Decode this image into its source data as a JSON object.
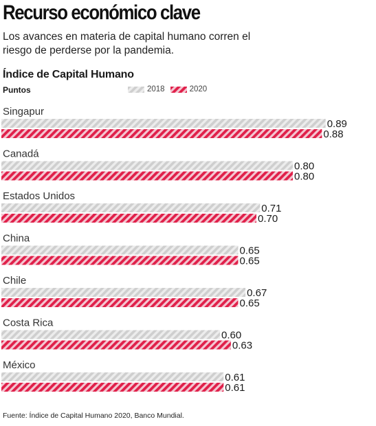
{
  "title": "Recurso económico clave",
  "subtitle": "Los avances en materia de capital humano corren el riesgo de perderse por la pandemia.",
  "source": "Fuente: Índice de Capital Humano 2020, Banco Mundial.",
  "colors": {
    "series_2018": "#d4d4d4",
    "series_2020": "#e0204a"
  },
  "chart_data": {
    "type": "bar",
    "orientation": "horizontal",
    "title": "Índice de Capital Humano",
    "unit_label": "Puntos",
    "categories": [
      "Singapur",
      "Canadá",
      "Estados Unidos",
      "China",
      "Chile",
      "Costa Rica",
      "México"
    ],
    "series": [
      {
        "name": "2018",
        "values": [
          0.89,
          0.8,
          0.71,
          0.65,
          0.67,
          0.6,
          0.61
        ],
        "value_labels": [
          "0.89",
          "0.80",
          "0.71",
          "0.65",
          "0.67",
          "0.60",
          "0.61"
        ]
      },
      {
        "name": "2020",
        "values": [
          0.88,
          0.8,
          0.7,
          0.65,
          0.65,
          0.63,
          0.61
        ],
        "value_labels": [
          "0.88",
          "0.80",
          "0.70",
          "0.65",
          "0.65",
          "0.63",
          "0.61"
        ]
      }
    ],
    "legend_position": "top",
    "xlim": [
      0,
      1
    ],
    "grid": false
  }
}
